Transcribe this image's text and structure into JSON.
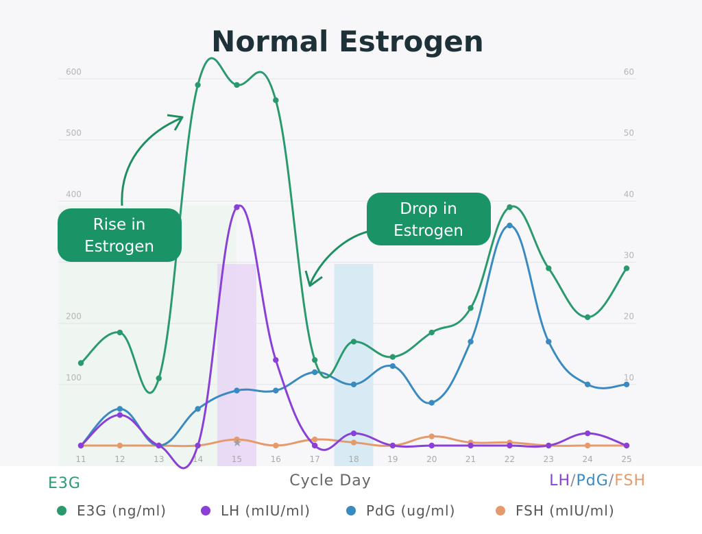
{
  "chart_data": {
    "type": "line",
    "title": "Normal Estrogen",
    "xlabel": "Cycle Day",
    "left_axis_label": "E3G",
    "right_axis_label": {
      "parts": [
        {
          "text": "LH",
          "color": "#8a3fd6"
        },
        {
          "text": "/",
          "color": "#8a8aa0"
        },
        {
          "text": "PdG",
          "color": "#3a8ac2"
        },
        {
          "text": "/",
          "color": "#8a8aa0"
        },
        {
          "text": "FSH",
          "color": "#e59a6c"
        }
      ]
    },
    "x": [
      11,
      12,
      13,
      14,
      15,
      16,
      17,
      18,
      19,
      20,
      21,
      22,
      23,
      24,
      25
    ],
    "y_left": {
      "ticks": [
        100,
        200,
        400,
        500,
        600
      ],
      "lim": [
        0,
        600
      ]
    },
    "y_right": {
      "ticks": [
        10,
        20,
        30,
        40,
        50,
        60
      ],
      "lim": [
        0,
        60
      ]
    },
    "grid": true,
    "legend_placement": "bottom",
    "series": [
      {
        "name": "E3G (ng/ml)",
        "axis": "left",
        "color": "#2a9a6e",
        "values": [
          135,
          185,
          110,
          590,
          590,
          565,
          140,
          170,
          145,
          185,
          225,
          390,
          290,
          210,
          290
        ]
      },
      {
        "name": "LH (mIU/ml)",
        "axis": "right",
        "color": "#8a3fd6",
        "values": [
          0,
          5,
          0,
          0,
          39,
          14,
          0,
          2,
          0,
          0,
          0,
          0,
          0,
          2,
          0
        ]
      },
      {
        "name": "PdG (ug/ml)",
        "axis": "right",
        "color": "#3a8ac2",
        "values": [
          0,
          6,
          0,
          6,
          9,
          9,
          12,
          10,
          13,
          7,
          17,
          36,
          17,
          10,
          10
        ]
      },
      {
        "name": "FSH (mIU/ml)",
        "axis": "right",
        "color": "#e59a6c",
        "values": [
          0,
          0,
          0,
          0,
          1,
          0,
          1,
          0.5,
          0,
          1.5,
          0.5,
          0.5,
          0,
          0,
          0
        ]
      }
    ],
    "highlight_days": [
      {
        "day": 15,
        "color": "#e7d3f6"
      },
      {
        "day": 18,
        "color": "#cfe7f3"
      }
    ],
    "annotations": [
      {
        "text_lines": [
          "Rise in",
          "Estrogen"
        ],
        "color": "#1a9466"
      },
      {
        "text_lines": [
          "Drop in",
          "Estrogen"
        ],
        "color": "#1a9466"
      }
    ]
  }
}
